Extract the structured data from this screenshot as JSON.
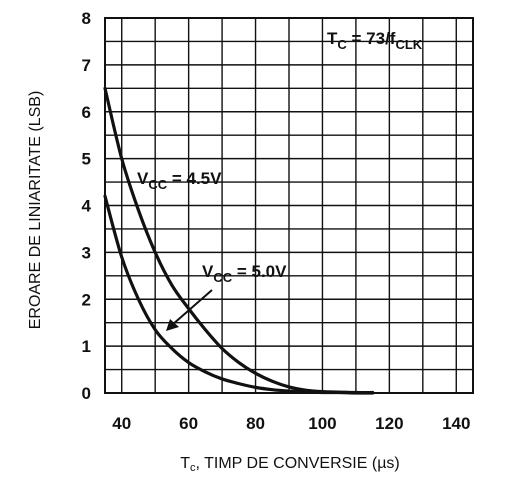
{
  "chart_data": {
    "type": "line",
    "xlabel": "Tc, TIMP DE CONVERSIE (µs)",
    "xlabel_main": "T",
    "xlabel_sub": "c",
    "xlabel_rest": ", TIMP DE CONVERSIE (µs)",
    "ylabel": "EROARE DE LINIARITATE (LSB)",
    "xlim": [
      35,
      145
    ],
    "ylim": [
      0,
      8
    ],
    "grid": true,
    "x_ticks": [
      40,
      60,
      80,
      100,
      120,
      140
    ],
    "y_ticks": [
      0,
      1,
      2,
      3,
      4,
      5,
      6,
      7,
      8
    ],
    "series": [
      {
        "name": "VCC = 4.5V",
        "x": [
          35,
          40,
          45,
          50,
          55,
          60,
          65,
          70,
          75,
          80,
          85,
          90,
          95,
          100,
          105,
          110,
          115
        ],
        "y": [
          6.5,
          5.0,
          3.9,
          3.0,
          2.3,
          1.8,
          1.35,
          0.95,
          0.65,
          0.42,
          0.25,
          0.13,
          0.06,
          0.03,
          0.02,
          0.01,
          0.01
        ]
      },
      {
        "name": "VCC = 5.0V",
        "x": [
          35,
          40,
          45,
          50,
          55,
          60,
          65,
          70,
          75,
          80,
          85,
          90,
          95,
          100,
          105,
          110,
          115
        ],
        "y": [
          4.2,
          2.9,
          2.0,
          1.35,
          0.95,
          0.65,
          0.45,
          0.3,
          0.2,
          0.12,
          0.07,
          0.04,
          0.02,
          0.01,
          0.01,
          0.0,
          0.0
        ]
      }
    ],
    "annotations": {
      "formula": {
        "main": "T",
        "sub1": "C",
        "mid": " = 73/f",
        "sub2": "CLK"
      },
      "label_45": {
        "main": "V",
        "sub": "CC",
        "rest": " = 4.5V"
      },
      "label_50": {
        "main": "V",
        "sub": "CC",
        "rest": " = 5.0V"
      }
    }
  }
}
